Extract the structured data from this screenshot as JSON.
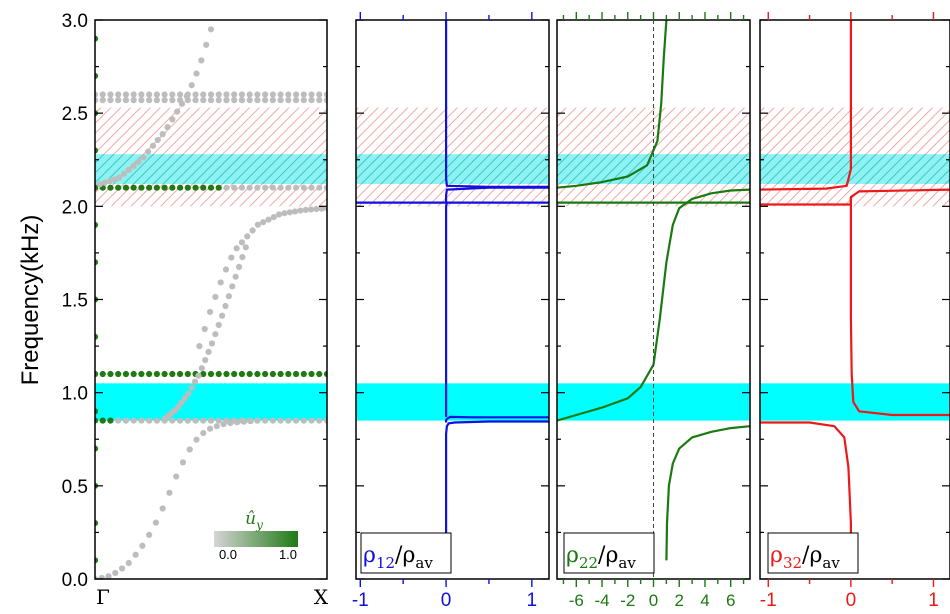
{
  "figure": {
    "ylabel": "Frequency(kHz)",
    "ytick_labels": [
      "0.0",
      "0.5",
      "1.0",
      "1.5",
      "2.0",
      "2.5",
      "3.0"
    ]
  },
  "colors": {
    "rho12": "#1010e0",
    "rho22": "#1a7a12",
    "rho32": "#ee1818",
    "band_gray": "#bdbdbd",
    "band_green": "#1f7a14",
    "cyan": "#00ffff",
    "pink_hatch": "#f2a8a8",
    "cyan_hatch": "#35c8c8"
  },
  "chart_data": [
    {
      "type": "scatter",
      "panel": "band-structure",
      "xtick_labels": [
        "Γ",
        "X"
      ],
      "xlim": [
        0,
        1
      ],
      "ylim": [
        0,
        3.0
      ],
      "ylabel": "Frequency(kHz)",
      "colorbar": {
        "symbol": "û",
        "subscript": "y",
        "min_label": "0.0",
        "max_label": "1.0"
      },
      "shaded_bands": [
        {
          "fill": "cyan-solid",
          "ymin": 0.85,
          "ymax": 1.05
        },
        {
          "fill": "cyan-hatched",
          "ymin": 2.12,
          "ymax": 2.28
        },
        {
          "fill": "pink-hatched",
          "ymin": 2.0,
          "ymax": 2.53
        }
      ],
      "branches": [
        {
          "name": "acoustic",
          "x": [
            0,
            0.05,
            0.1,
            0.15,
            0.2,
            0.25,
            0.3,
            0.35,
            0.4,
            0.45,
            0.5,
            0.55,
            0.6,
            0.65,
            0.7
          ],
          "y": [
            0,
            0.01,
            0.04,
            0.09,
            0.17,
            0.27,
            0.4,
            0.55,
            0.68,
            0.77,
            0.81,
            0.83,
            0.84,
            0.845,
            0.85
          ]
        },
        {
          "name": "flat-0.85",
          "y0": 0.85
        },
        {
          "name": "flat-1.10",
          "y0": 1.1
        },
        {
          "name": "flat-2.10",
          "y0": 2.1
        },
        {
          "name": "flat-2.57",
          "y0": 2.57
        },
        {
          "name": "flat-2.60",
          "y0": 2.6
        },
        {
          "name": "steep-1",
          "x": [
            0.3,
            0.35,
            0.4,
            0.45,
            0.5,
            0.55,
            0.6,
            0.65
          ],
          "y": [
            0.86,
            0.91,
            0.99,
            1.1,
            1.25,
            1.42,
            1.6,
            1.78
          ]
        },
        {
          "name": "upper-curve",
          "x": [
            0.45,
            0.5,
            0.55,
            0.6,
            0.7,
            0.8,
            0.9,
            1.0
          ],
          "y": [
            1.25,
            1.45,
            1.62,
            1.76,
            1.9,
            1.96,
            1.98,
            1.99
          ]
        },
        {
          "name": "top-curve",
          "x": [
            0.0,
            0.1,
            0.2,
            0.3,
            0.35,
            0.4,
            0.45,
            0.5
          ],
          "y": [
            2.11,
            2.15,
            2.25,
            2.4,
            2.5,
            2.6,
            2.75,
            2.95
          ]
        },
        {
          "name": "gamma-green-column",
          "x": [
            0.0
          ],
          "y": [
            0.1,
            0.3,
            0.5,
            0.7,
            0.9,
            1.1,
            1.3,
            1.5,
            1.7,
            1.9,
            2.1,
            2.3,
            2.5,
            2.7,
            2.9
          ]
        }
      ]
    },
    {
      "type": "line",
      "panel": "rho12",
      "label_main": "ρ",
      "label_sub": "12",
      "label_den": "/ρ",
      "label_den_sub": "av",
      "xtick_labels": [
        "-1",
        "0",
        "1"
      ],
      "xticks": [
        -1,
        0,
        1
      ],
      "xlim": [
        -1.05,
        1.2
      ],
      "ylim": [
        0,
        3.0
      ],
      "shaded_bands": [
        {
          "fill": "cyan-solid",
          "ymin": 0.85,
          "ymax": 1.05
        },
        {
          "fill": "cyan-hatched",
          "ymin": 2.12,
          "ymax": 2.28
        },
        {
          "fill": "pink-hatched",
          "ymin": 2.0,
          "ymax": 2.53
        }
      ],
      "series": [
        {
          "x": [
            0,
            0,
            0.01,
            0.03,
            0.1,
            0.5,
            1.2
          ],
          "y": [
            0.1,
            0.78,
            0.82,
            0.835,
            0.84,
            0.845,
            0.845
          ]
        },
        {
          "x": [
            0,
            0,
            0.01,
            0.05,
            0.3,
            1.2
          ],
          "y": [
            0.84,
            0.85,
            0.86,
            0.87,
            0.868,
            0.868
          ]
        },
        {
          "x": [
            0,
            0,
            0.01,
            0.2,
            1.2
          ],
          "y": [
            0.87,
            2.0,
            2.02,
            2.02,
            2.02
          ]
        },
        {
          "x": [
            -1.05,
            0,
            0,
            0.01,
            0.5,
            1.2
          ],
          "y": [
            2.02,
            2.02,
            2.06,
            2.09,
            2.1,
            2.1
          ]
        },
        {
          "x": [
            0,
            0,
            0.01,
            0.5,
            1.2
          ],
          "y": [
            3.0,
            2.15,
            2.11,
            2.105,
            2.105
          ]
        }
      ]
    },
    {
      "type": "line",
      "panel": "rho22",
      "label_main": "ρ",
      "label_sub": "22",
      "label_den": "/ρ",
      "label_den_sub": "av",
      "xtick_labels": [
        "-6",
        "-4",
        "-2",
        "0",
        "2",
        "4",
        "6"
      ],
      "xticks": [
        -6,
        -4,
        -2,
        0,
        2,
        4,
        6
      ],
      "xlim": [
        -7.5,
        7.5
      ],
      "ylim": [
        0,
        3.0
      ],
      "shaded_bands": [
        {
          "fill": "cyan-solid",
          "ymin": 0.85,
          "ymax": 1.05
        },
        {
          "fill": "cyan-hatched",
          "ymin": 2.12,
          "ymax": 2.28
        },
        {
          "fill": "pink-hatched",
          "ymin": 2.0,
          "ymax": 2.53
        }
      ],
      "series": [
        {
          "x": [
            1,
            1.05,
            1.2,
            1.5,
            2,
            3,
            4.5,
            6,
            7.5
          ],
          "y": [
            0.1,
            0.3,
            0.5,
            0.62,
            0.7,
            0.76,
            0.79,
            0.81,
            0.82
          ]
        },
        {
          "x": [
            -7.5,
            -6,
            -4,
            -2,
            -1,
            0,
            0.5,
            1,
            1.5,
            2,
            3,
            4.5,
            6,
            7.5
          ],
          "y": [
            0.85,
            0.88,
            0.92,
            0.97,
            1.03,
            1.15,
            1.4,
            1.7,
            1.9,
            1.99,
            2.04,
            2.07,
            2.085,
            2.09
          ]
        },
        {
          "x": [
            -7.5,
            0.2,
            7.5
          ],
          "y": [
            2.02,
            2.02,
            2.02
          ]
        },
        {
          "x": [
            -7.5,
            -6,
            -4,
            -2,
            -0.5,
            0.3,
            0.6,
            0.8,
            1.0
          ],
          "y": [
            2.1,
            2.11,
            2.13,
            2.16,
            2.22,
            2.35,
            2.55,
            2.8,
            3.0
          ]
        }
      ]
    },
    {
      "type": "line",
      "panel": "rho32",
      "label_main": "ρ",
      "label_sub": "32",
      "label_den": "/ρ",
      "label_den_sub": "av",
      "xtick_labels": [
        "-1",
        "0",
        "1"
      ],
      "xticks": [
        -1,
        0,
        1
      ],
      "xlim": [
        -1.1,
        1.2
      ],
      "ylim": [
        0,
        3.0
      ],
      "shaded_bands": [
        {
          "fill": "cyan-solid",
          "ymin": 0.85,
          "ymax": 1.05
        },
        {
          "fill": "cyan-hatched",
          "ymin": 2.12,
          "ymax": 2.28
        },
        {
          "fill": "pink-hatched",
          "ymin": 2.0,
          "ymax": 2.53
        }
      ],
      "series": [
        {
          "x": [
            -1.1,
            -0.5,
            -0.2,
            -0.08,
            -0.03,
            0,
            0
          ],
          "y": [
            0.84,
            0.84,
            0.82,
            0.76,
            0.6,
            0.3,
            0.1
          ]
        },
        {
          "x": [
            1.2,
            0.5,
            0.1,
            0.03,
            0.01,
            0,
            0
          ],
          "y": [
            0.88,
            0.88,
            0.9,
            0.95,
            1.1,
            1.4,
            2.05
          ]
        },
        {
          "x": [
            -1.1,
            0,
            0,
            0.1,
            1.2
          ],
          "y": [
            2.01,
            2.01,
            2.05,
            2.08,
            2.09
          ]
        },
        {
          "x": [
            -1.1,
            -0.3,
            -0.05,
            0,
            0
          ],
          "y": [
            2.09,
            2.095,
            2.11,
            2.2,
            3.0
          ]
        }
      ]
    }
  ]
}
